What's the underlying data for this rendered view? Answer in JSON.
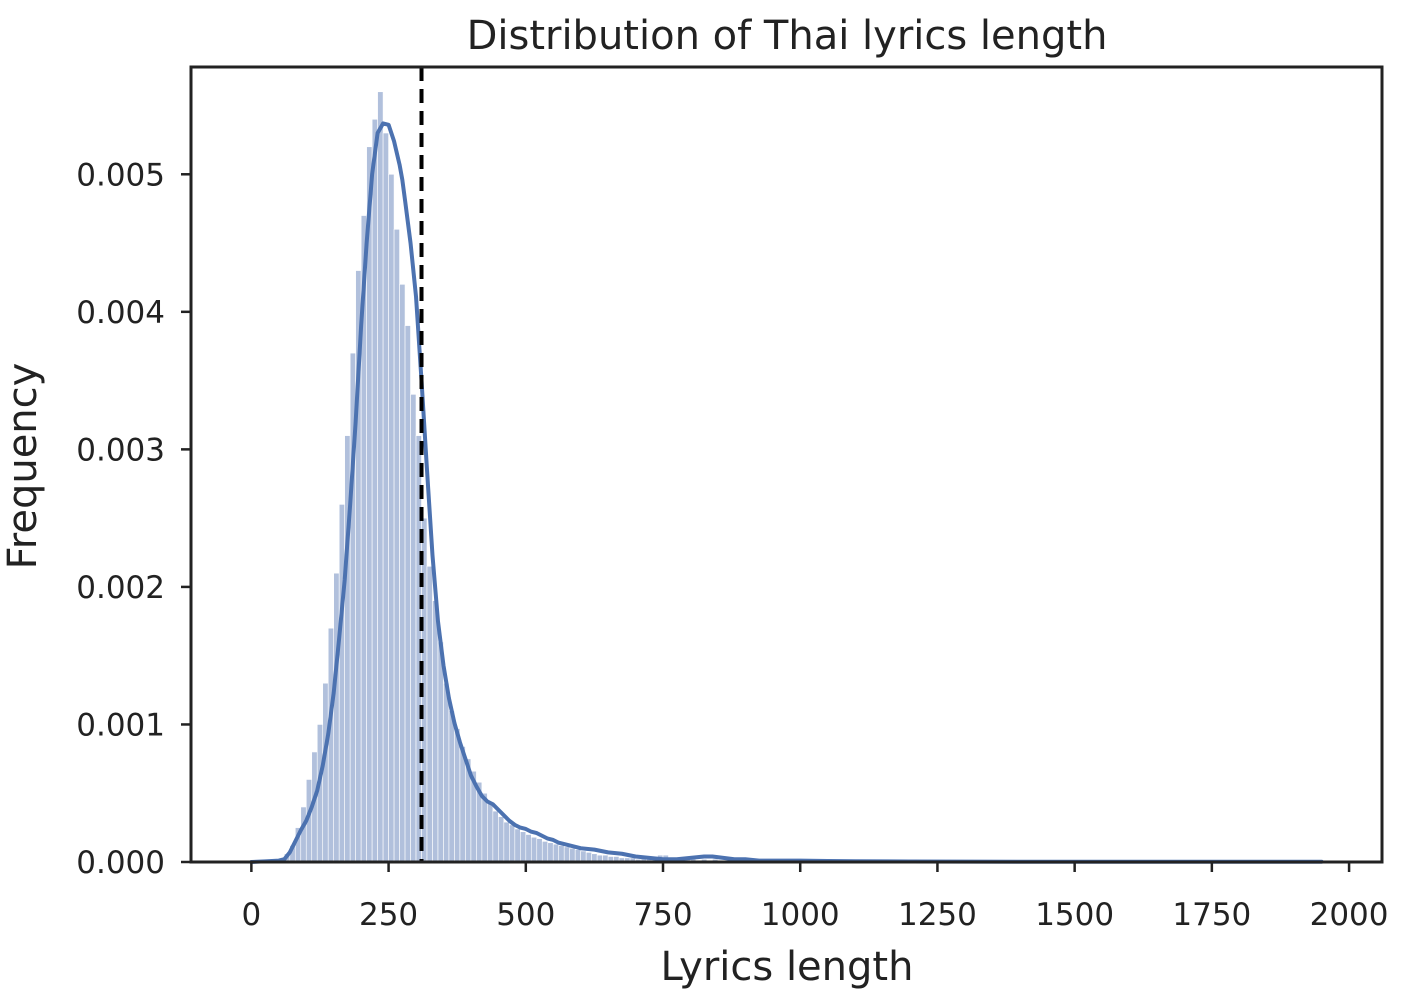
{
  "chart_data": {
    "type": "bar",
    "title": "Distribution of Thai lyrics length",
    "xlabel": "Lyrics length",
    "ylabel": "Frequency",
    "xlim": [
      -110,
      2060
    ],
    "ylim": [
      0,
      0.00578
    ],
    "x_ticks": [
      "0",
      "250",
      "500",
      "750",
      "1000",
      "1250",
      "1500",
      "1750",
      "2000"
    ],
    "y_ticks": [
      "0.000",
      "0.001",
      "0.002",
      "0.003",
      "0.004",
      "0.005"
    ],
    "bin_width": 10,
    "histogram": {
      "bin_starts": [
        50,
        60,
        70,
        80,
        90,
        100,
        110,
        120,
        130,
        140,
        150,
        160,
        170,
        180,
        190,
        200,
        210,
        220,
        230,
        240,
        250,
        260,
        270,
        280,
        290,
        300,
        310,
        320,
        330,
        340,
        350,
        360,
        370,
        380,
        390,
        400,
        410,
        420,
        430,
        440,
        450,
        460,
        470,
        480,
        490,
        500,
        510,
        520,
        530,
        540,
        550,
        560,
        570,
        580,
        590,
        600,
        610,
        620,
        630,
        640,
        650,
        660,
        670,
        680,
        690,
        700,
        710,
        720,
        730,
        740,
        750,
        760,
        770,
        780,
        790,
        800,
        810,
        820,
        830,
        840,
        850,
        860,
        870,
        880,
        890,
        900,
        910,
        920,
        930,
        940,
        950,
        960,
        970,
        980,
        990,
        1000,
        1010,
        1020,
        1030,
        1040,
        1050,
        1060,
        1070,
        1080,
        1090,
        1100,
        1110,
        1120,
        1130,
        1140,
        1150,
        1160,
        1170,
        1180,
        1190,
        1200,
        1210,
        1220,
        1230,
        1240,
        1250,
        1260,
        1270,
        1280,
        1290,
        1300,
        1310,
        1320,
        1330,
        1340,
        1350,
        1360,
        1370,
        1380,
        1390,
        1400,
        1410,
        1420,
        1430,
        1440,
        1450,
        1460,
        1470,
        1480,
        1490,
        1500,
        1510,
        1520,
        1530,
        1540,
        1550,
        1560,
        1570,
        1580,
        1590,
        1600,
        1610,
        1620,
        1630,
        1640,
        1650,
        1660,
        1670,
        1680,
        1690,
        1700,
        1710,
        1720,
        1730,
        1740,
        1750,
        1760,
        1770,
        1780,
        1790,
        1800,
        1810,
        1820,
        1830,
        1840,
        1850,
        1860,
        1870,
        1880,
        1890,
        1900,
        1910,
        1920,
        1930
      ],
      "densities": [
        2e-05,
        6e-05,
        0.00012,
        0.00025,
        0.0004,
        0.0006,
        0.0008,
        0.001,
        0.0013,
        0.0017,
        0.0021,
        0.0026,
        0.0031,
        0.0037,
        0.0043,
        0.0047,
        0.0052,
        0.0054,
        0.0056,
        0.0053,
        0.005,
        0.0046,
        0.0042,
        0.0039,
        0.0034,
        0.0031,
        0.0025,
        0.00215,
        0.0019,
        0.0016,
        0.0013,
        0.0011,
        0.00097,
        0.00084,
        0.00075,
        0.00066,
        0.00058,
        0.0005,
        0.00043,
        0.00037,
        0.00033,
        0.00029,
        0.00027,
        0.00024,
        0.00022,
        0.0002,
        0.00018,
        0.00017,
        0.00015,
        0.00014,
        0.00013,
        0.00012,
        0.00011,
        0.0001,
        9e-05,
        8e-05,
        7e-05,
        6e-05,
        5e-05,
        5e-05,
        4e-05,
        4e-05,
        3e-05,
        3e-05,
        3e-05,
        2e-05,
        3e-05,
        3e-05,
        4e-05,
        5e-05,
        5e-05,
        3e-05,
        2e-05,
        2e-05,
        2e-05,
        2e-05,
        1e-05,
        2e-05,
        1e-05,
        2e-05,
        1e-05,
        1e-05,
        1e-05,
        1e-05,
        1e-05,
        1e-05,
        1e-05,
        1e-05,
        1e-05,
        1e-05,
        5e-06,
        5e-06,
        5e-06,
        5e-06,
        5e-06,
        5e-06,
        5e-06,
        5e-06,
        4e-06,
        4e-06,
        4e-06,
        4e-06,
        4e-06,
        4e-06,
        4e-06,
        4e-06,
        3e-06,
        3e-06,
        3e-06,
        3e-06,
        3e-06,
        3e-06,
        3e-06,
        3e-06,
        3e-06,
        3e-06,
        3e-06,
        3e-06,
        3e-06,
        3e-06,
        6e-06,
        6e-06,
        6e-06,
        3e-06,
        3e-06,
        3e-06,
        3e-06,
        3e-06,
        3e-06,
        3e-06,
        3e-06,
        3e-06,
        3e-06,
        3e-06,
        3e-06,
        3e-06,
        3e-06,
        3e-06,
        3e-06,
        3e-06,
        3e-06,
        3e-06,
        3e-06,
        3e-06,
        3e-06,
        3e-06,
        3e-06,
        3e-06,
        3e-06,
        3e-06,
        3e-06,
        3e-06,
        3e-06,
        3e-06,
        3e-06,
        3e-06,
        3e-06,
        3e-06,
        3e-06,
        3e-06,
        3e-06,
        3e-06,
        3e-06,
        3e-06,
        3e-06,
        3e-06,
        3e-06,
        3e-06,
        3e-06,
        3e-06,
        3e-06,
        3e-06,
        3e-06,
        3e-06,
        3e-06,
        3e-06,
        3e-06,
        3e-06,
        3e-06,
        3e-06,
        3e-06,
        3e-06,
        3e-06,
        3e-06,
        3e-06,
        3e-06,
        3e-06,
        3e-06,
        3e-06,
        3e-06,
        3e-06,
        3e-06,
        3e-06,
        3e-06,
        3e-06,
        3e-06,
        3e-06
      ]
    },
    "kde": {
      "x": [
        0,
        25,
        50,
        60,
        70,
        80,
        90,
        100,
        110,
        120,
        130,
        140,
        150,
        160,
        170,
        180,
        190,
        200,
        210,
        220,
        230,
        240,
        250,
        260,
        270,
        275,
        280,
        290,
        300,
        310,
        320,
        330,
        340,
        350,
        360,
        370,
        380,
        390,
        400,
        410,
        420,
        430,
        440,
        450,
        460,
        470,
        480,
        490,
        500,
        510,
        520,
        530,
        540,
        550,
        560,
        570,
        580,
        590,
        600,
        625,
        650,
        675,
        700,
        725,
        750,
        775,
        800,
        825,
        840,
        860,
        880,
        900,
        925,
        950,
        1000,
        1050,
        1100,
        1200,
        1300,
        1400,
        1500,
        1600,
        1700,
        1800,
        1900,
        1950
      ],
      "y": [
        0.0,
        5e-06,
        1e-05,
        2e-05,
        7e-05,
        0.00015,
        0.00023,
        0.0003,
        0.0004,
        0.00052,
        0.0007,
        0.00093,
        0.00123,
        0.00163,
        0.00205,
        0.0026,
        0.0032,
        0.0039,
        0.0045,
        0.005,
        0.0053,
        0.00537,
        0.00536,
        0.00524,
        0.00507,
        0.00496,
        0.00481,
        0.0045,
        0.00411,
        0.0035,
        0.00285,
        0.00223,
        0.00175,
        0.00143,
        0.00119,
        0.00101,
        0.00087,
        0.00075,
        0.00063,
        0.00055,
        0.00048,
        0.00044,
        0.00042,
        0.00038,
        0.00034,
        0.0003,
        0.00027,
        0.00025,
        0.00024,
        0.00022,
        0.00021,
        0.00019,
        0.00017,
        0.00016,
        0.00014,
        0.00013,
        0.00012,
        0.00011,
        0.0001,
        9e-05,
        7e-05,
        6e-05,
        4e-05,
        3e-05,
        2e-05,
        2e-05,
        3e-05,
        4e-05,
        4e-05,
        3e-05,
        2e-05,
        2e-05,
        1e-05,
        1e-05,
        1e-05,
        7e-06,
        5e-06,
        4e-06,
        3e-06,
        2e-06,
        2e-06,
        2e-06,
        2e-06,
        2e-06,
        2e-06,
        2e-06
      ]
    },
    "mean_line_x": 310,
    "grid": false,
    "colors": {
      "hist_fill": "#b1c0dc",
      "kde_line": "#4c72b0",
      "mean_line": "#000000",
      "axes": "#222222"
    }
  }
}
